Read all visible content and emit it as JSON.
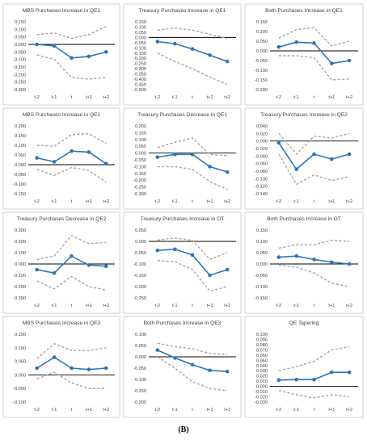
{
  "caption": "(B)",
  "colors": {
    "estimate": "#2e75b6",
    "interval": "#a6a6a6",
    "zero_line": "#000000"
  },
  "chart_data": [
    {
      "type": "line",
      "title": "MBS Purchases Increase in QE1",
      "categories": [
        "t-2",
        "t-1",
        "t",
        "t+1",
        "t+2"
      ],
      "ylim": [
        -0.3,
        0.15
      ],
      "yticks": [
        -0.3,
        -0.25,
        -0.2,
        -0.15,
        -0.1,
        -0.05,
        0,
        0.05,
        0.1,
        0.15
      ],
      "series": [
        {
          "role": "estimate",
          "values": [
            0.0,
            -0.01,
            -0.09,
            -0.08,
            -0.05
          ]
        },
        {
          "role": "upper",
          "values": [
            0.065,
            0.075,
            0.04,
            0.065,
            0.12
          ]
        },
        {
          "role": "lower",
          "values": [
            -0.07,
            -0.1,
            -0.22,
            -0.23,
            -0.22
          ]
        }
      ]
    },
    {
      "type": "line",
      "title": "Treasury Purchases Increase in QE1",
      "categories": [
        "t-2",
        "t-1",
        "t",
        "t+1",
        "t+2"
      ],
      "ylim": [
        -0.5,
        0.15
      ],
      "yticks": [
        -0.5,
        -0.45,
        -0.4,
        -0.35,
        -0.3,
        -0.25,
        -0.2,
        -0.15,
        -0.1,
        -0.05,
        0,
        0.05,
        0.1,
        0.15
      ],
      "series": [
        {
          "role": "estimate",
          "values": [
            -0.04,
            -0.06,
            -0.11,
            -0.17,
            -0.23
          ]
        },
        {
          "role": "upper",
          "values": [
            0.07,
            0.09,
            0.07,
            0.03,
            -0.01
          ]
        },
        {
          "role": "lower",
          "values": [
            -0.15,
            -0.23,
            -0.3,
            -0.38,
            -0.45
          ]
        }
      ]
    },
    {
      "type": "line",
      "title": "Both Purchases Increase in QE1",
      "categories": [
        "t-2",
        "t-1",
        "t",
        "t+1",
        "t+2"
      ],
      "ylim": [
        -0.2,
        0.15
      ],
      "yticks": [
        -0.2,
        -0.15,
        -0.1,
        -0.05,
        0,
        0.05,
        0.1,
        0.15
      ],
      "series": [
        {
          "role": "estimate",
          "values": [
            0.02,
            0.045,
            0.04,
            -0.065,
            -0.05
          ]
        },
        {
          "role": "upper",
          "values": [
            0.065,
            0.11,
            0.12,
            0.025,
            0.05
          ]
        },
        {
          "role": "lower",
          "values": [
            -0.025,
            -0.025,
            -0.035,
            -0.15,
            -0.145
          ]
        }
      ]
    },
    {
      "type": "line",
      "title": "MBS Purchases Increase in QE1",
      "categories": [
        "t-2",
        "t-1",
        "t",
        "t+1",
        "t+2"
      ],
      "ylim": [
        -0.15,
        0.2
      ],
      "yticks": [
        -0.15,
        -0.1,
        -0.05,
        0,
        0.05,
        0.1,
        0.15,
        0.2
      ],
      "series": [
        {
          "role": "estimate",
          "values": [
            0.035,
            0.015,
            0.07,
            0.065,
            0.005
          ]
        },
        {
          "role": "upper",
          "values": [
            0.1,
            0.095,
            0.155,
            0.16,
            0.11
          ]
        },
        {
          "role": "lower",
          "values": [
            -0.025,
            -0.055,
            -0.015,
            -0.03,
            -0.09
          ]
        }
      ]
    },
    {
      "type": "line",
      "title": "Treasury Purchases Decrease in QE1",
      "categories": [
        "t-2",
        "t-1",
        "t",
        "t+1",
        "t+2"
      ],
      "ylim": [
        -0.3,
        0.2
      ],
      "yticks": [
        -0.3,
        -0.25,
        -0.2,
        -0.15,
        -0.1,
        -0.05,
        0,
        0.05,
        0.1,
        0.15,
        0.2
      ],
      "series": [
        {
          "role": "estimate",
          "values": [
            -0.03,
            -0.01,
            -0.01,
            -0.1,
            -0.14
          ]
        },
        {
          "role": "upper",
          "values": [
            0.04,
            0.08,
            0.11,
            -0.01,
            -0.02
          ]
        },
        {
          "role": "lower",
          "values": [
            -0.1,
            -0.1,
            -0.12,
            -0.21,
            -0.27
          ]
        }
      ]
    },
    {
      "type": "line",
      "title": "Treasury Purchases Increase in QE2",
      "categories": [
        "t-2",
        "t-1",
        "t",
        "t+1",
        "t+2"
      ],
      "ylim": [
        -0.14,
        0.04
      ],
      "yticks": [
        -0.14,
        -0.12,
        -0.1,
        -0.08,
        -0.06,
        -0.04,
        -0.02,
        0,
        0.02,
        0.04
      ],
      "series": [
        {
          "role": "estimate",
          "values": [
            -0.005,
            -0.075,
            -0.035,
            -0.048,
            -0.035
          ]
        },
        {
          "role": "upper",
          "values": [
            0.02,
            -0.035,
            0.013,
            0.008,
            0.02
          ]
        },
        {
          "role": "lower",
          "values": [
            -0.035,
            -0.115,
            -0.09,
            -0.105,
            -0.095
          ]
        }
      ]
    },
    {
      "type": "line",
      "title": "Treasury Purchases Decrease in QE2",
      "categories": [
        "t-2",
        "t-1",
        "t",
        "t+1",
        "t+2"
      ],
      "ylim": [
        -0.3,
        0.3
      ],
      "yticks": [
        -0.3,
        -0.2,
        -0.1,
        0,
        0.1,
        0.2,
        0.3
      ],
      "series": [
        {
          "role": "estimate",
          "values": [
            -0.05,
            -0.08,
            0.07,
            -0.01,
            -0.02
          ]
        },
        {
          "role": "upper",
          "values": [
            0.04,
            0.07,
            0.25,
            0.18,
            0.19
          ]
        },
        {
          "role": "lower",
          "values": [
            -0.15,
            -0.22,
            -0.11,
            -0.2,
            -0.23
          ]
        }
      ]
    },
    {
      "type": "line",
      "title": "Treasury Purchases Increase in OT",
      "categories": [
        "t-2",
        "t-1",
        "t",
        "t+1",
        "t+2"
      ],
      "ylim": [
        -0.25,
        0.05
      ],
      "yticks": [
        -0.25,
        -0.2,
        -0.15,
        -0.1,
        -0.05,
        0,
        0.05
      ],
      "series": [
        {
          "role": "estimate",
          "values": [
            -0.04,
            -0.035,
            -0.06,
            -0.15,
            -0.125
          ]
        },
        {
          "role": "upper",
          "values": [
            0.005,
            0.015,
            0.005,
            -0.08,
            -0.05
          ]
        },
        {
          "role": "lower",
          "values": [
            -0.085,
            -0.09,
            -0.125,
            -0.22,
            -0.2
          ]
        }
      ]
    },
    {
      "type": "line",
      "title": "Both Purchases Increase in OT",
      "categories": [
        "t-2",
        "t-1",
        "t",
        "t+1",
        "t+2"
      ],
      "ylim": [
        -0.15,
        0.15
      ],
      "yticks": [
        -0.15,
        -0.1,
        -0.05,
        0,
        0.05,
        0.1,
        0.15
      ],
      "series": [
        {
          "role": "estimate",
          "values": [
            0.03,
            0.035,
            0.02,
            0.008,
            0.0
          ]
        },
        {
          "role": "upper",
          "values": [
            0.07,
            0.085,
            0.085,
            0.105,
            0.1
          ]
        },
        {
          "role": "lower",
          "values": [
            -0.005,
            -0.015,
            -0.04,
            -0.085,
            -0.1
          ]
        }
      ]
    },
    {
      "type": "line",
      "title": "MBS Purchases Increase in QE3",
      "categories": [
        "t-2",
        "t-1",
        "t",
        "t+1",
        "t+2"
      ],
      "ylim": [
        -0.1,
        0.15
      ],
      "yticks": [
        -0.1,
        -0.05,
        0,
        0.05,
        0.1,
        0.15
      ],
      "series": [
        {
          "role": "estimate",
          "values": [
            0.025,
            0.065,
            0.025,
            0.02,
            0.025
          ]
        },
        {
          "role": "upper",
          "values": [
            0.06,
            0.115,
            0.09,
            0.09,
            0.1
          ]
        },
        {
          "role": "lower",
          "values": [
            -0.015,
            0.01,
            -0.03,
            -0.05,
            -0.05
          ]
        }
      ]
    },
    {
      "type": "line",
      "title": "Both Purchases Increase in QE3",
      "categories": [
        "t-2",
        "t-1",
        "t",
        "t+1",
        "t+2"
      ],
      "ylim": [
        -0.2,
        0.1
      ],
      "yticks": [
        -0.2,
        -0.15,
        -0.1,
        -0.05,
        0,
        0.05,
        0.1
      ],
      "series": [
        {
          "role": "estimate",
          "values": [
            0.03,
            -0.005,
            -0.035,
            -0.06,
            -0.065
          ]
        },
        {
          "role": "upper",
          "values": [
            0.06,
            0.045,
            0.035,
            0.015,
            0.01
          ]
        },
        {
          "role": "lower",
          "values": [
            0.0,
            -0.05,
            -0.11,
            -0.14,
            -0.15
          ]
        }
      ]
    },
    {
      "type": "line",
      "title": "QE Tapering",
      "categories": [
        "t-2",
        "t-1",
        "t",
        "t+1",
        "t+2"
      ],
      "ylim": [
        -0.03,
        0.1
      ],
      "yticks": [
        -0.03,
        -0.02,
        -0.01,
        0,
        0.01,
        0.02,
        0.03,
        0.04,
        0.05,
        0.06,
        0.07,
        0.08,
        0.09,
        0.1
      ],
      "series": [
        {
          "role": "estimate",
          "values": [
            0.012,
            0.013,
            0.013,
            0.027,
            0.027
          ]
        },
        {
          "role": "upper",
          "values": [
            0.03,
            0.038,
            0.048,
            0.07,
            0.076
          ]
        },
        {
          "role": "lower",
          "values": [
            -0.008,
            -0.016,
            -0.022,
            -0.016,
            -0.02
          ]
        }
      ]
    }
  ]
}
